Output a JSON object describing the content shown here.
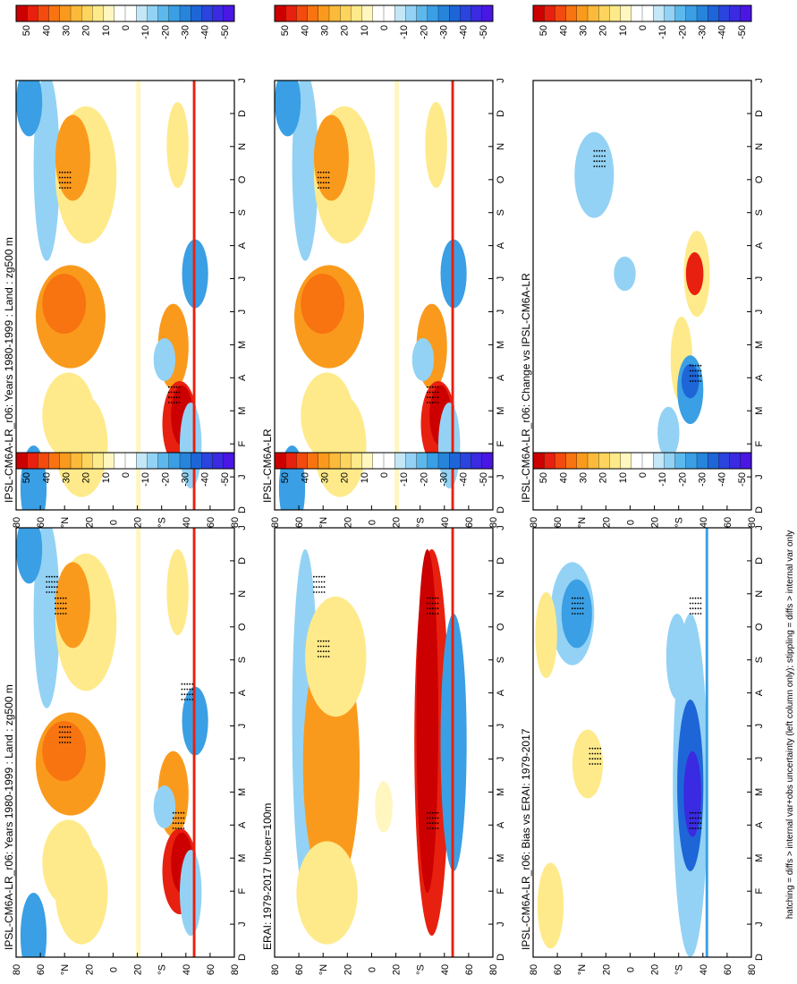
{
  "figure": {
    "footnote": "hatching = diffs > internal var+obs uncertainty (left column only); stippling = diffs > internal var only"
  },
  "colorbar": {
    "ticks": [
      "50",
      "40",
      "30",
      "20",
      "10",
      "0",
      "-10",
      "-20",
      "-30",
      "-40",
      "-50"
    ],
    "colors": [
      "#cc0000",
      "#e8200f",
      "#f24a0f",
      "#f77410",
      "#fa9a1d",
      "#fcba3a",
      "#fdd45e",
      "#feea8a",
      "#fff6c0",
      "#ffffff",
      "#ffffff",
      "#c4e7f7",
      "#93d2f4",
      "#5db8ec",
      "#3a9fe4",
      "#2784db",
      "#1e66d8",
      "#2a44dd",
      "#3a2ae2",
      "#4a16e4"
    ]
  },
  "axes": {
    "lat_ticks": [
      "80",
      "60",
      "°N",
      "20",
      "0",
      "20",
      "°S",
      "40",
      "60",
      "80"
    ],
    "month_ticks": [
      "D",
      "J",
      "F",
      "M",
      "A",
      "M",
      "J",
      "J",
      "A",
      "S",
      "O",
      "N",
      "D",
      "J"
    ]
  },
  "chart_data": [
    {
      "type": "heatmap",
      "title": "IPSL-CM6A-LR_r06: Years 1980-1999 : Land : zg500 m",
      "quantity": "zg500 anomaly (m)",
      "position": "top-left"
    },
    {
      "type": "heatmap",
      "title": "IPSL-CM6A-LR_r06: Years 1980-1999 : Land : zg500 m",
      "quantity": "zg500 anomaly (m)",
      "position": "top-right"
    },
    {
      "type": "heatmap",
      "title": "ERAI: 1979-2017 Uncer=100m",
      "quantity": "zg500 anomaly (m)",
      "position": "middle-left"
    },
    {
      "type": "heatmap",
      "title": "IPSL-CM6A-LR",
      "quantity": "zg500 anomaly (m)",
      "position": "middle-right"
    },
    {
      "type": "heatmap",
      "title": "IPSL-CM6A-LR_r06: Bias vs ERAI: 1979-2017",
      "quantity": "zg500 difference (m)",
      "position": "bottom-left"
    },
    {
      "type": "heatmap",
      "title": "IPSL-CM6A-LR_r06: Change vs IPSL-CM6A-LR",
      "quantity": "zg500 difference (m)",
      "position": "bottom-right"
    }
  ]
}
